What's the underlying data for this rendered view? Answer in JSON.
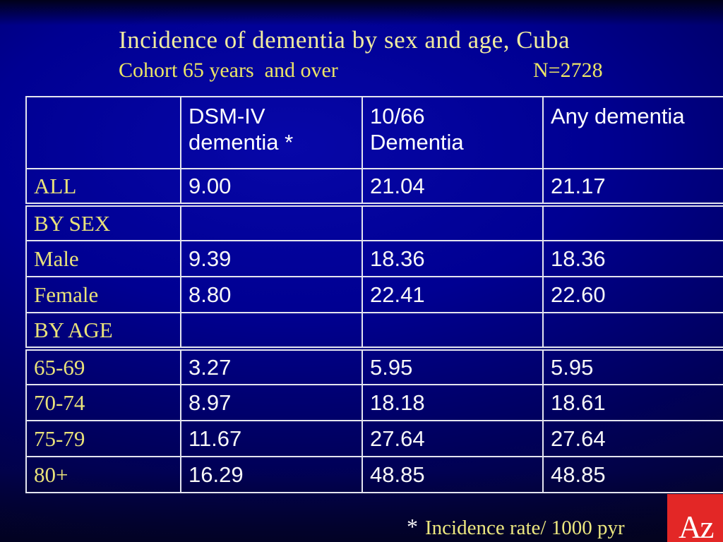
{
  "slide": {
    "title": "Incidence of dementia by sex and age, Cuba",
    "subtitle": "Cohort 65 years  and over",
    "n_label": "N=2728",
    "footnote": {
      "marker": "*",
      "text": "Incidence rate/ 1000 pyr"
    },
    "logo": {
      "text": "Az",
      "color": "#e32726"
    }
  },
  "colors": {
    "background_center": "#0707a8",
    "background_edge": "#05051f",
    "title_text": "#f0eb9f",
    "row_label_text": "#e9e27a",
    "value_text": "#ffffff",
    "table_border": "#e4e5ef",
    "logo_red": "#e32726"
  },
  "chart_data": {
    "type": "table",
    "title": "Incidence of dementia by sex and age, Cuba",
    "subtitle": "Cohort 65 years and over",
    "n": "N=2728",
    "columns": [
      "",
      "DSM-IV\ndementia *",
      "10/66\nDementia",
      "Any dementia"
    ],
    "rows": [
      {
        "label": "ALL",
        "values": [
          "9.00",
          "21.04",
          "21.17"
        ]
      },
      {
        "label": "BY SEX",
        "values": [
          "",
          "",
          ""
        ]
      },
      {
        "label": "Male",
        "values": [
          "9.39",
          "18.36",
          "18.36"
        ]
      },
      {
        "label": "Female",
        "values": [
          "8.80",
          "22.41",
          "22.60"
        ]
      },
      {
        "label": "BY AGE",
        "values": [
          "",
          "",
          ""
        ]
      },
      {
        "label": "65-69",
        "values": [
          "3.27",
          "5.95",
          "5.95"
        ]
      },
      {
        "label": "70-74",
        "values": [
          "8.97",
          "18.18",
          "18.61"
        ]
      },
      {
        "label": "75-79",
        "values": [
          "11.67",
          "27.64",
          "27.64"
        ]
      },
      {
        "label": "80+",
        "values": [
          "16.29",
          "48.85",
          "48.85"
        ]
      }
    ],
    "section_divider_above": [
      "BY SEX",
      "65-69"
    ],
    "footnote": "* Incidence rate/ 1000 pyr"
  }
}
